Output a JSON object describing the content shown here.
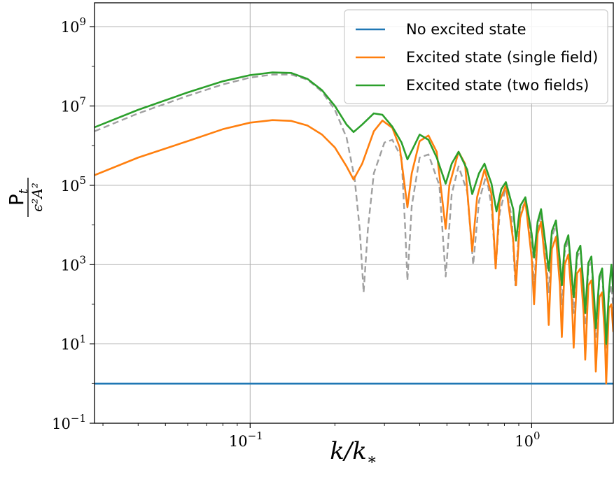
{
  "chart_data": {
    "type": "line",
    "xscale": "log",
    "yscale": "log",
    "xlim": [
      0.028,
      1.95
    ],
    "ylim": [
      0.1,
      4000000000
    ],
    "grid": true,
    "legend_position": "top-right",
    "xlabel": "k/k",
    "xlabel_sub": "∗",
    "ylabel_num": "P",
    "ylabel_num_sub": "t",
    "ylabel_den": "ϵ²A²",
    "x_ticks": [
      {
        "value": 0.1,
        "base": "10",
        "exp": "−1"
      },
      {
        "value": 1,
        "base": "10",
        "exp": "0"
      }
    ],
    "y_ticks": [
      {
        "value": 0.1,
        "base": "10",
        "exp": "−1"
      },
      {
        "value": 10,
        "base": "10",
        "exp": "1"
      },
      {
        "value": 1000,
        "base": "10",
        "exp": "3"
      },
      {
        "value": 100000,
        "base": "10",
        "exp": "5"
      },
      {
        "value": 10000000,
        "base": "10",
        "exp": "7"
      },
      {
        "value": 1000000000,
        "base": "10",
        "exp": "9"
      }
    ],
    "series": [
      {
        "name": "No excited state",
        "color": "#1f77b4",
        "style": "solid",
        "points": [
          [
            0.028,
            1
          ],
          [
            1.95,
            1
          ]
        ]
      },
      {
        "name": "Excited state (single field)",
        "color": "#ff7f0e",
        "style": "solid",
        "points": [
          [
            0.028,
            180000
          ],
          [
            0.04,
            500000
          ],
          [
            0.06,
            1300000
          ],
          [
            0.08,
            2600000
          ],
          [
            0.1,
            3800000
          ],
          [
            0.12,
            4400000
          ],
          [
            0.14,
            4200000
          ],
          [
            0.16,
            3200000
          ],
          [
            0.18,
            1900000
          ],
          [
            0.2,
            900000
          ],
          [
            0.22,
            300000
          ],
          [
            0.233,
            140000
          ],
          [
            0.25,
            350000
          ],
          [
            0.275,
            2300000
          ],
          [
            0.295,
            4300000
          ],
          [
            0.32,
            2800000
          ],
          [
            0.34,
            900000
          ],
          [
            0.362,
            28000
          ],
          [
            0.375,
            200000
          ],
          [
            0.4,
            1300000
          ],
          [
            0.43,
            1800000
          ],
          [
            0.46,
            700000
          ],
          [
            0.495,
            8000
          ],
          [
            0.51,
            100000
          ],
          [
            0.55,
            700000
          ],
          [
            0.58,
            350000
          ],
          [
            0.615,
            2200
          ],
          [
            0.64,
            50000
          ],
          [
            0.68,
            250000
          ],
          [
            0.72,
            60000
          ],
          [
            0.745,
            800
          ],
          [
            0.77,
            40000
          ],
          [
            0.81,
            100000
          ],
          [
            0.86,
            4000
          ],
          [
            0.88,
            300
          ],
          [
            0.91,
            15000
          ],
          [
            0.95,
            40000
          ],
          [
            1.0,
            1500
          ],
          [
            1.02,
            100
          ],
          [
            1.05,
            6000
          ],
          [
            1.08,
            12000
          ],
          [
            1.13,
            500
          ],
          [
            1.15,
            30
          ],
          [
            1.18,
            2500
          ],
          [
            1.22,
            5000
          ],
          [
            1.26,
            300
          ],
          [
            1.28,
            15
          ],
          [
            1.31,
            1000
          ],
          [
            1.35,
            1800
          ],
          [
            1.39,
            120
          ],
          [
            1.41,
            8
          ],
          [
            1.45,
            600
          ],
          [
            1.49,
            800
          ],
          [
            1.53,
            60
          ],
          [
            1.55,
            4
          ],
          [
            1.59,
            300
          ],
          [
            1.63,
            400
          ],
          [
            1.67,
            30
          ],
          [
            1.69,
            2
          ],
          [
            1.74,
            150
          ],
          [
            1.78,
            200
          ],
          [
            1.82,
            15
          ],
          [
            1.84,
            1
          ],
          [
            1.88,
            80
          ],
          [
            1.92,
            100
          ],
          [
            1.95,
            20
          ]
        ]
      },
      {
        "name": "Excited state (two fields)",
        "color": "#2ca02c",
        "style": "solid",
        "points": [
          [
            0.028,
            2900000
          ],
          [
            0.04,
            8000000
          ],
          [
            0.06,
            22000000
          ],
          [
            0.08,
            42000000
          ],
          [
            0.1,
            60000000
          ],
          [
            0.12,
            70000000
          ],
          [
            0.14,
            68000000
          ],
          [
            0.16,
            48000000
          ],
          [
            0.18,
            25000000
          ],
          [
            0.2,
            10000000
          ],
          [
            0.22,
            3400000
          ],
          [
            0.233,
            2200000
          ],
          [
            0.25,
            3400000
          ],
          [
            0.275,
            6500000
          ],
          [
            0.295,
            6000000
          ],
          [
            0.32,
            3000000
          ],
          [
            0.345,
            1200000
          ],
          [
            0.362,
            450000
          ],
          [
            0.38,
            900000
          ],
          [
            0.4,
            1900000
          ],
          [
            0.43,
            1400000
          ],
          [
            0.46,
            500000
          ],
          [
            0.495,
            110000
          ],
          [
            0.52,
            350000
          ],
          [
            0.55,
            700000
          ],
          [
            0.59,
            250000
          ],
          [
            0.615,
            60000
          ],
          [
            0.65,
            200000
          ],
          [
            0.68,
            350000
          ],
          [
            0.72,
            110000
          ],
          [
            0.75,
            22000
          ],
          [
            0.78,
            80000
          ],
          [
            0.81,
            120000
          ],
          [
            0.86,
            25000
          ],
          [
            0.88,
            4000
          ],
          [
            0.91,
            30000
          ],
          [
            0.95,
            50000
          ],
          [
            1.0,
            6000
          ],
          [
            1.02,
            1500
          ],
          [
            1.05,
            12000
          ],
          [
            1.08,
            25000
          ],
          [
            1.13,
            2000
          ],
          [
            1.15,
            700
          ],
          [
            1.18,
            7000
          ],
          [
            1.22,
            13000
          ],
          [
            1.26,
            1200
          ],
          [
            1.28,
            300
          ],
          [
            1.31,
            3000
          ],
          [
            1.35,
            5500
          ],
          [
            1.39,
            500
          ],
          [
            1.41,
            150
          ],
          [
            1.45,
            2000
          ],
          [
            1.49,
            3000
          ],
          [
            1.53,
            250
          ],
          [
            1.55,
            60
          ],
          [
            1.59,
            1100
          ],
          [
            1.63,
            1600
          ],
          [
            1.67,
            120
          ],
          [
            1.69,
            25
          ],
          [
            1.74,
            500
          ],
          [
            1.78,
            800
          ],
          [
            1.82,
            60
          ],
          [
            1.84,
            10
          ],
          [
            1.88,
            200
          ],
          [
            1.92,
            1000
          ],
          [
            1.95,
            200
          ]
        ]
      },
      {
        "color": "#a0a0a0",
        "style": "dashed",
        "points": [
          [
            0.028,
            2300000
          ],
          [
            0.04,
            6500000
          ],
          [
            0.06,
            18000000
          ],
          [
            0.08,
            35000000
          ],
          [
            0.1,
            52000000
          ],
          [
            0.12,
            62000000
          ],
          [
            0.14,
            62000000
          ],
          [
            0.16,
            46000000
          ],
          [
            0.18,
            23000000
          ],
          [
            0.2,
            8000000
          ],
          [
            0.22,
            1600000
          ],
          [
            0.235,
            150000
          ],
          [
            0.245,
            8000
          ],
          [
            0.253,
            200
          ],
          [
            0.262,
            8000
          ],
          [
            0.275,
            200000
          ],
          [
            0.3,
            1200000
          ],
          [
            0.32,
            1400000
          ],
          [
            0.345,
            500000
          ],
          [
            0.355,
            10000
          ],
          [
            0.362,
            400
          ],
          [
            0.375,
            30000
          ],
          [
            0.4,
            500000
          ],
          [
            0.43,
            600000
          ],
          [
            0.47,
            100000
          ],
          [
            0.495,
            500
          ],
          [
            0.52,
            60000
          ],
          [
            0.55,
            300000
          ],
          [
            0.59,
            70000
          ],
          [
            0.62,
            1000
          ],
          [
            0.65,
            40000
          ],
          [
            0.69,
            180000
          ],
          [
            0.72,
            30000
          ],
          [
            0.745,
            800
          ],
          [
            0.77,
            20000
          ],
          [
            0.81,
            90000
          ],
          [
            0.85,
            15000
          ],
          [
            0.875,
            300
          ],
          [
            0.91,
            20000
          ],
          [
            0.95,
            40000
          ],
          [
            1.0,
            3000
          ],
          [
            1.02,
            300
          ],
          [
            1.05,
            8000
          ],
          [
            1.08,
            20000
          ],
          [
            1.13,
            1000
          ],
          [
            1.15,
            200
          ],
          [
            1.18,
            5000
          ],
          [
            1.22,
            10000
          ],
          [
            1.26,
            600
          ],
          [
            1.28,
            100
          ],
          [
            1.31,
            2000
          ],
          [
            1.35,
            4500
          ],
          [
            1.39,
            300
          ],
          [
            1.41,
            60
          ],
          [
            1.45,
            1500
          ],
          [
            1.49,
            2500
          ],
          [
            1.53,
            150
          ],
          [
            1.55,
            30
          ],
          [
            1.59,
            800
          ],
          [
            1.63,
            1200
          ],
          [
            1.67,
            80
          ],
          [
            1.69,
            15
          ],
          [
            1.74,
            400
          ],
          [
            1.78,
            600
          ],
          [
            1.82,
            40
          ],
          [
            1.84,
            8
          ],
          [
            1.88,
            150
          ],
          [
            1.92,
            300
          ],
          [
            1.95,
            80
          ]
        ]
      }
    ]
  }
}
